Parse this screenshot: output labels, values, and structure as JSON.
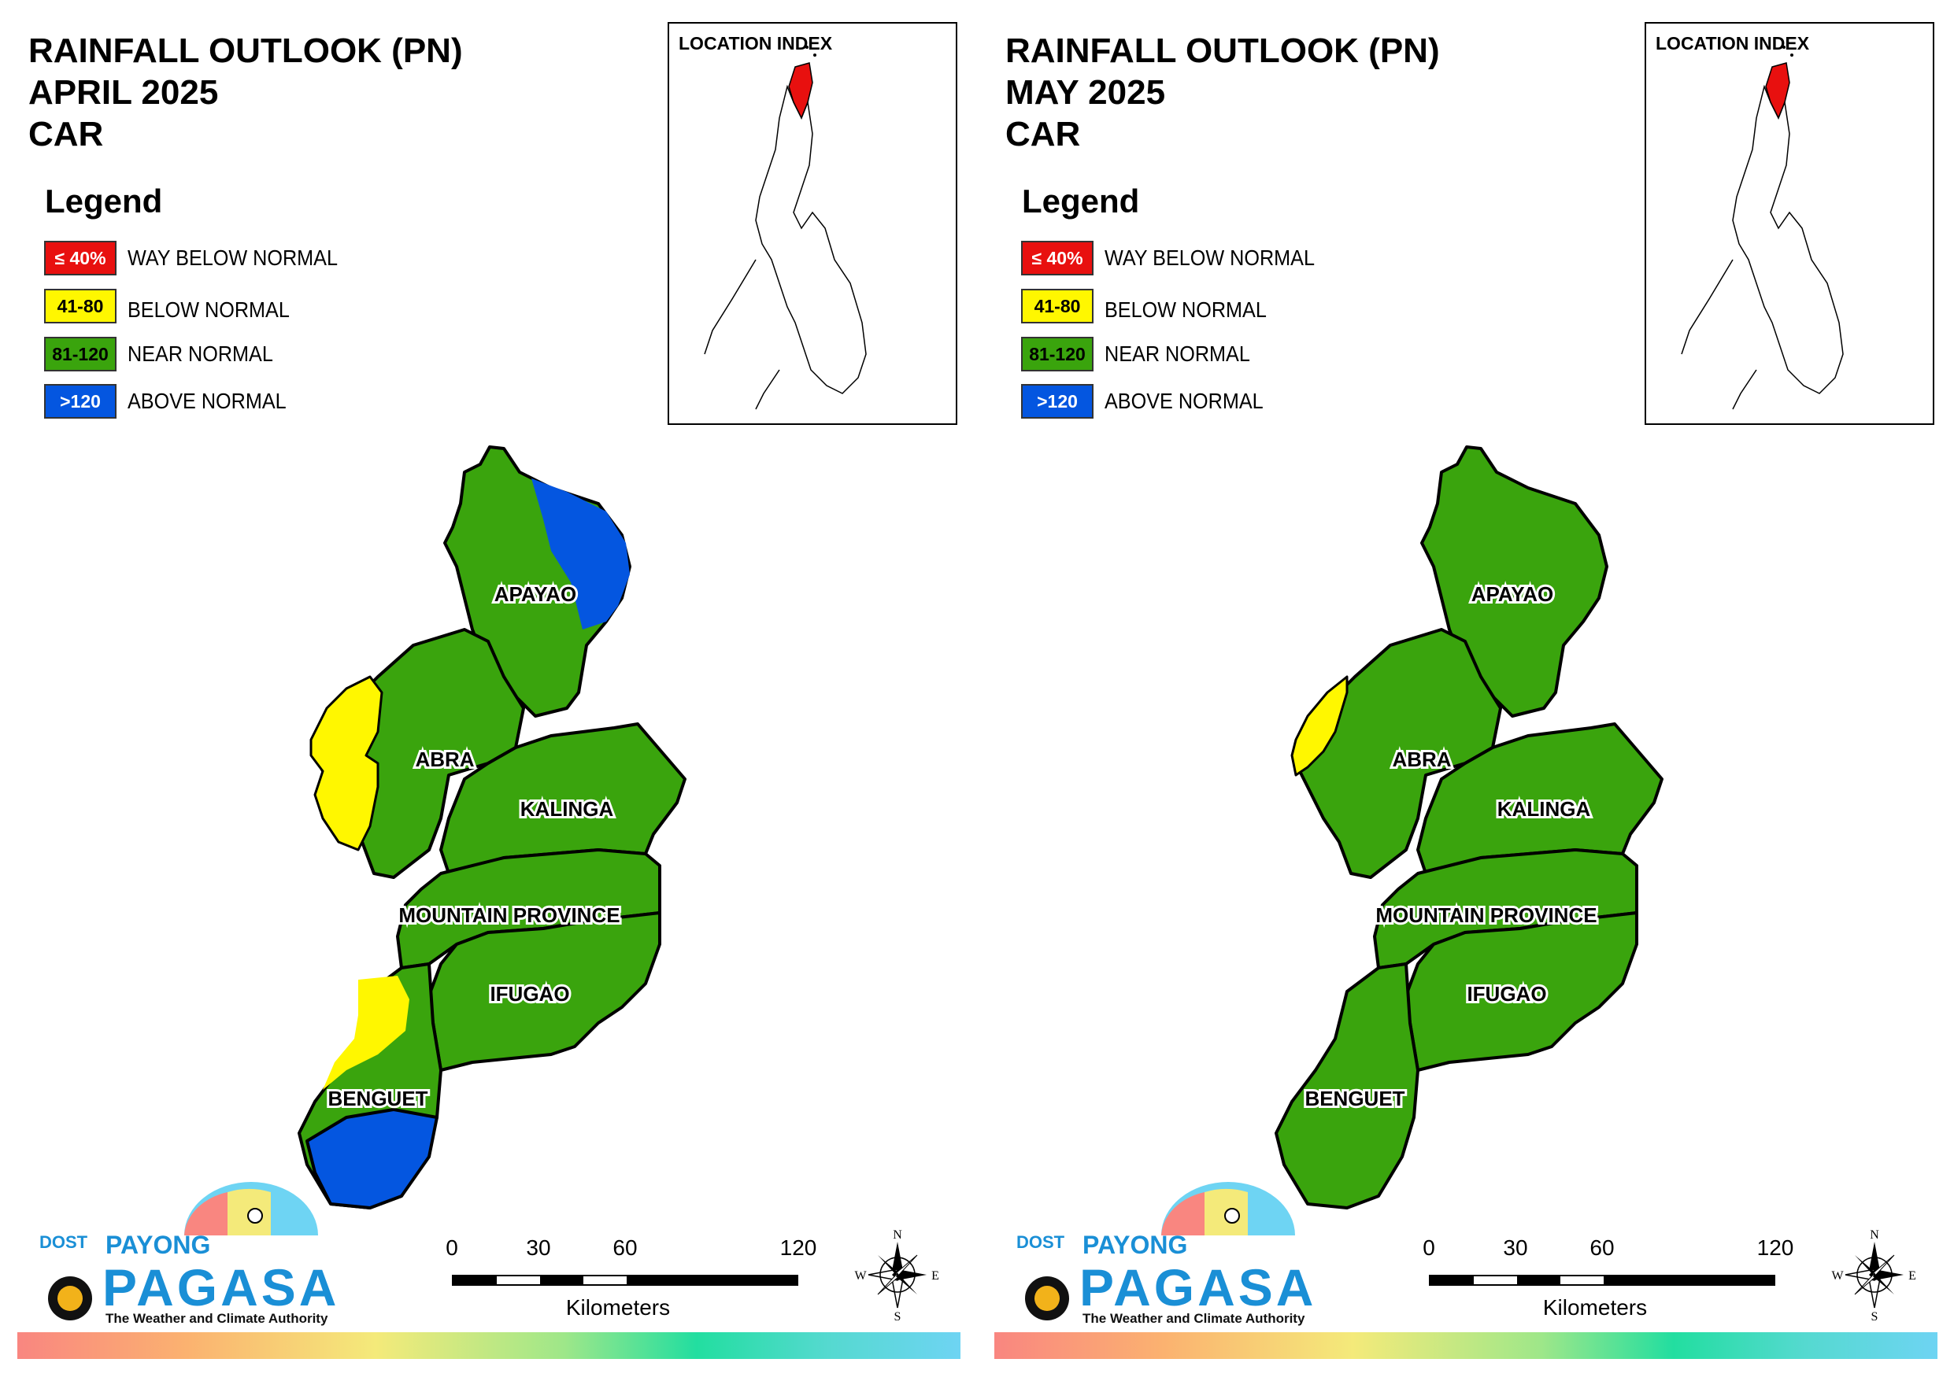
{
  "panels": [
    {
      "title": [
        "RAINFALL OUTLOOK (PN)",
        "APRIL 2025",
        "CAR"
      ],
      "legend_title": "Legend",
      "legend": [
        {
          "swatch": "≤ 40%",
          "label": "WAY BELOW NORMAL",
          "color": "#e8100f",
          "text_color": "#ffffff"
        },
        {
          "swatch": "41-80",
          "label": "BELOW NORMAL",
          "color": "#fff700",
          "text_color": "#000000"
        },
        {
          "swatch": "81-120",
          "label": "NEAR NORMAL",
          "color": "#3aa40d",
          "text_color": "#000000"
        },
        {
          "swatch": ">120",
          "label": "ABOVE NORMAL",
          "color": "#0456e0",
          "text_color": "#ffffff"
        }
      ],
      "inset_title": "LOCATION INDEX",
      "provinces": [
        "APAYAO",
        "ABRA",
        "KALINGA",
        "MOUNTAIN PROVINCE",
        "IFUGAO",
        "BENGUET"
      ],
      "scale": {
        "ticks": [
          "0",
          "30",
          "60",
          "120"
        ],
        "unit": "Kilometers"
      },
      "compass": {
        "n": "N",
        "s": "S",
        "e": "E",
        "w": "W"
      },
      "logo": {
        "dost": "DOST",
        "payong": "PAYONG",
        "pagasa": "PAGASA",
        "tagline": "The Weather and Climate Authority"
      }
    },
    {
      "title": [
        "RAINFALL OUTLOOK (PN)",
        "MAY 2025",
        "CAR"
      ],
      "legend_title": "Legend",
      "legend": [
        {
          "swatch": "≤ 40%",
          "label": "WAY BELOW NORMAL",
          "color": "#e8100f",
          "text_color": "#ffffff"
        },
        {
          "swatch": "41-80",
          "label": "BELOW NORMAL",
          "color": "#fff700",
          "text_color": "#000000"
        },
        {
          "swatch": "81-120",
          "label": "NEAR NORMAL",
          "color": "#3aa40d",
          "text_color": "#000000"
        },
        {
          "swatch": ">120",
          "label": "ABOVE NORMAL",
          "color": "#0456e0",
          "text_color": "#ffffff"
        }
      ],
      "inset_title": "LOCATION INDEX",
      "provinces": [
        "APAYAO",
        "ABRA",
        "KALINGA",
        "MOUNTAIN PROVINCE",
        "IFUGAO",
        "BENGUET"
      ],
      "scale": {
        "ticks": [
          "0",
          "30",
          "60",
          "120"
        ],
        "unit": "Kilometers"
      },
      "compass": {
        "n": "N",
        "s": "S",
        "e": "E",
        "w": "W"
      },
      "logo": {
        "dost": "DOST",
        "payong": "PAYONG",
        "pagasa": "PAGASA",
        "tagline": "The Weather and Climate Authority"
      }
    }
  ]
}
